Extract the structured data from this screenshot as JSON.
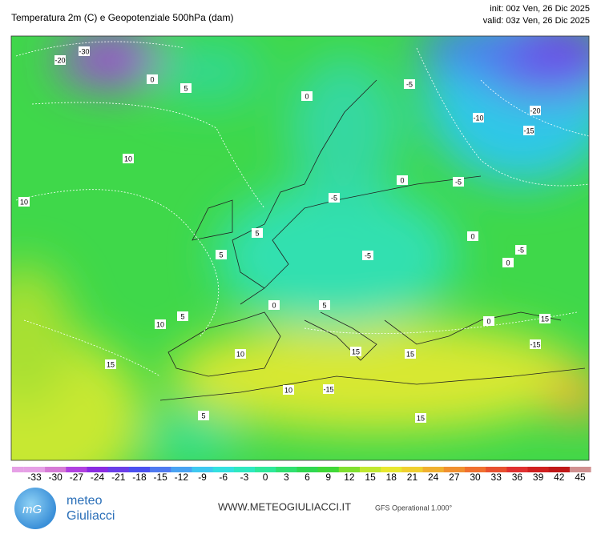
{
  "header": {
    "title": "Temperatura 2m (C) e Geopotenziale 500hPa (dam)",
    "init": "init: 00z Ven, 26 Dic 2025",
    "valid": "valid: 03z Ven, 26 Dic 2025"
  },
  "map": {
    "contour_labels": [
      -30,
      -20,
      0,
      5,
      -5,
      -10,
      -20,
      -15,
      0,
      10,
      10,
      -5,
      0,
      5,
      5,
      0,
      -5,
      0,
      5,
      0,
      10,
      15,
      15,
      10,
      15,
      10,
      -15,
      5,
      15,
      -15,
      15,
      0,
      -5,
      5,
      -5
    ]
  },
  "colorbar": {
    "ticks": [
      -33,
      -30,
      -27,
      -24,
      -21,
      -18,
      -15,
      -12,
      -9,
      -6,
      -3,
      0,
      3,
      6,
      9,
      12,
      15,
      18,
      21,
      24,
      27,
      30,
      33,
      36,
      39,
      42,
      45
    ],
    "colors": [
      "#e6a0e6",
      "#d67ad6",
      "#b040e0",
      "#8a2be2",
      "#6a3ee8",
      "#4b50f0",
      "#4f79f0",
      "#49a2f2",
      "#3ec8f0",
      "#33e0e0",
      "#2ee8c0",
      "#2ee89a",
      "#30e070",
      "#30d850",
      "#40d838",
      "#80e030",
      "#c0e830",
      "#e8e830",
      "#f0d030",
      "#f0b030",
      "#f09030",
      "#f07030",
      "#e85030",
      "#e03030",
      "#d02020",
      "#c01818",
      "#d09090"
    ]
  },
  "footer": {
    "logo_top": "meteo",
    "logo_bottom": "Giuliacci",
    "site": "WWW.METEOGIULIACCI.IT",
    "model": "GFS Operational 1.000°"
  }
}
